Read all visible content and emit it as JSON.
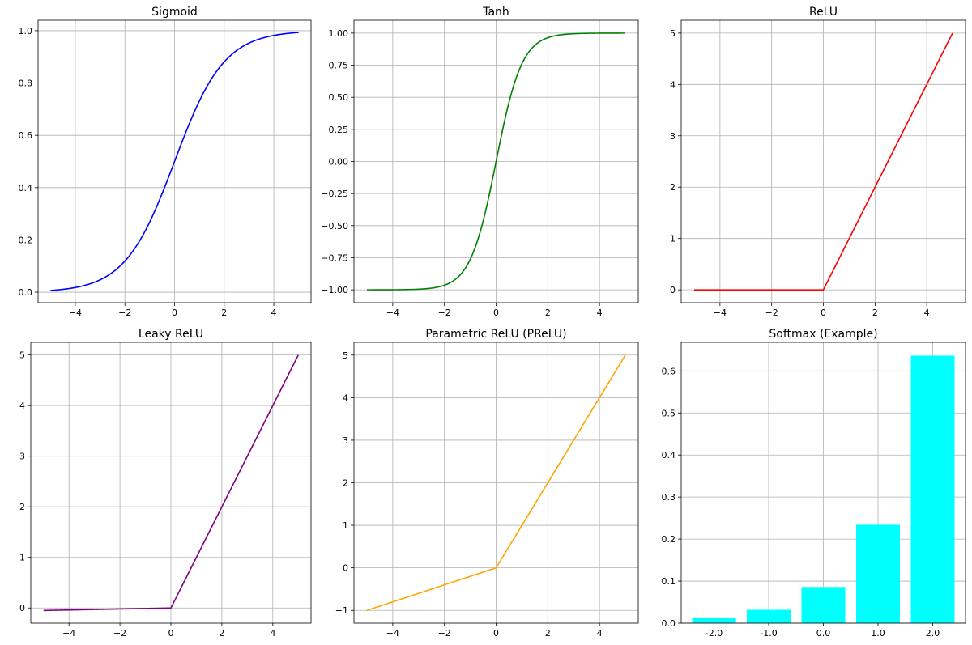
{
  "chart_data": [
    {
      "type": "line",
      "title": "Sigmoid",
      "function": "sigmoid",
      "x_range": [
        -5,
        5
      ],
      "color": "#0000ff",
      "xlim": [
        -5.5,
        5.5
      ],
      "ylim": [
        -0.04,
        1.04
      ],
      "xticks": [
        -4,
        -2,
        0,
        2,
        4
      ],
      "xtick_labels": [
        "−4",
        "−2",
        "0",
        "2",
        "4"
      ],
      "yticks": [
        0.0,
        0.2,
        0.4,
        0.6,
        0.8,
        1.0
      ],
      "ytick_labels": [
        "0.0",
        "0.2",
        "0.4",
        "0.6",
        "0.8",
        "1.0"
      ],
      "grid": true
    },
    {
      "type": "line",
      "title": "Tanh",
      "function": "tanh",
      "x_range": [
        -5,
        5
      ],
      "color": "#008000",
      "xlim": [
        -5.5,
        5.5
      ],
      "ylim": [
        -1.1,
        1.1
      ],
      "xticks": [
        -4,
        -2,
        0,
        2,
        4
      ],
      "xtick_labels": [
        "−4",
        "−2",
        "0",
        "2",
        "4"
      ],
      "yticks": [
        -1.0,
        -0.75,
        -0.5,
        -0.25,
        0.0,
        0.25,
        0.5,
        0.75,
        1.0
      ],
      "ytick_labels": [
        "−1.00",
        "−0.75",
        "−0.50",
        "−0.25",
        "0.00",
        "0.25",
        "0.50",
        "0.75",
        "1.00"
      ],
      "grid": true
    },
    {
      "type": "line",
      "title": "ReLU",
      "function": "relu",
      "x_range": [
        -5,
        5
      ],
      "color": "#ff0000",
      "xlim": [
        -5.5,
        5.5
      ],
      "ylim": [
        -0.25,
        5.25
      ],
      "xticks": [
        -4,
        -2,
        0,
        2,
        4
      ],
      "xtick_labels": [
        "−4",
        "−2",
        "0",
        "2",
        "4"
      ],
      "yticks": [
        0,
        1,
        2,
        3,
        4,
        5
      ],
      "ytick_labels": [
        "0",
        "1",
        "2",
        "3",
        "4",
        "5"
      ],
      "grid": true
    },
    {
      "type": "line",
      "title": "Leaky ReLU",
      "function": "leaky_relu",
      "alpha": 0.01,
      "x_range": [
        -5,
        5
      ],
      "color": "#800080",
      "xlim": [
        -5.5,
        5.5
      ],
      "ylim": [
        -0.3,
        5.25
      ],
      "xticks": [
        -4,
        -2,
        0,
        2,
        4
      ],
      "xtick_labels": [
        "−4",
        "−2",
        "0",
        "2",
        "4"
      ],
      "yticks": [
        0,
        1,
        2,
        3,
        4,
        5
      ],
      "ytick_labels": [
        "0",
        "1",
        "2",
        "3",
        "4",
        "5"
      ],
      "grid": true
    },
    {
      "type": "line",
      "title": "Parametric ReLU (PReLU)",
      "function": "prelu",
      "alpha": 0.2,
      "x_range": [
        -5,
        5
      ],
      "color": "#ffa500",
      "xlim": [
        -5.5,
        5.5
      ],
      "ylim": [
        -1.3,
        5.3
      ],
      "xticks": [
        -4,
        -2,
        0,
        2,
        4
      ],
      "xtick_labels": [
        "−4",
        "−2",
        "0",
        "2",
        "4"
      ],
      "yticks": [
        -1,
        0,
        1,
        2,
        3,
        4,
        5
      ],
      "ytick_labels": [
        "−1",
        "0",
        "1",
        "2",
        "3",
        "4",
        "5"
      ],
      "grid": true
    },
    {
      "type": "bar",
      "title": "Softmax (Example)",
      "categories": [
        "-2.0",
        "-1.0",
        "0.0",
        "1.0",
        "2.0"
      ],
      "values": [
        0.0117,
        0.0317,
        0.0861,
        0.2341,
        0.6364
      ],
      "color": "#00ffff",
      "ylim": [
        0,
        0.668
      ],
      "yticks": [
        0.0,
        0.1,
        0.2,
        0.3,
        0.4,
        0.5,
        0.6
      ],
      "ytick_labels": [
        "0.0",
        "0.1",
        "0.2",
        "0.3",
        "0.4",
        "0.5",
        "0.6"
      ],
      "grid": true
    }
  ]
}
